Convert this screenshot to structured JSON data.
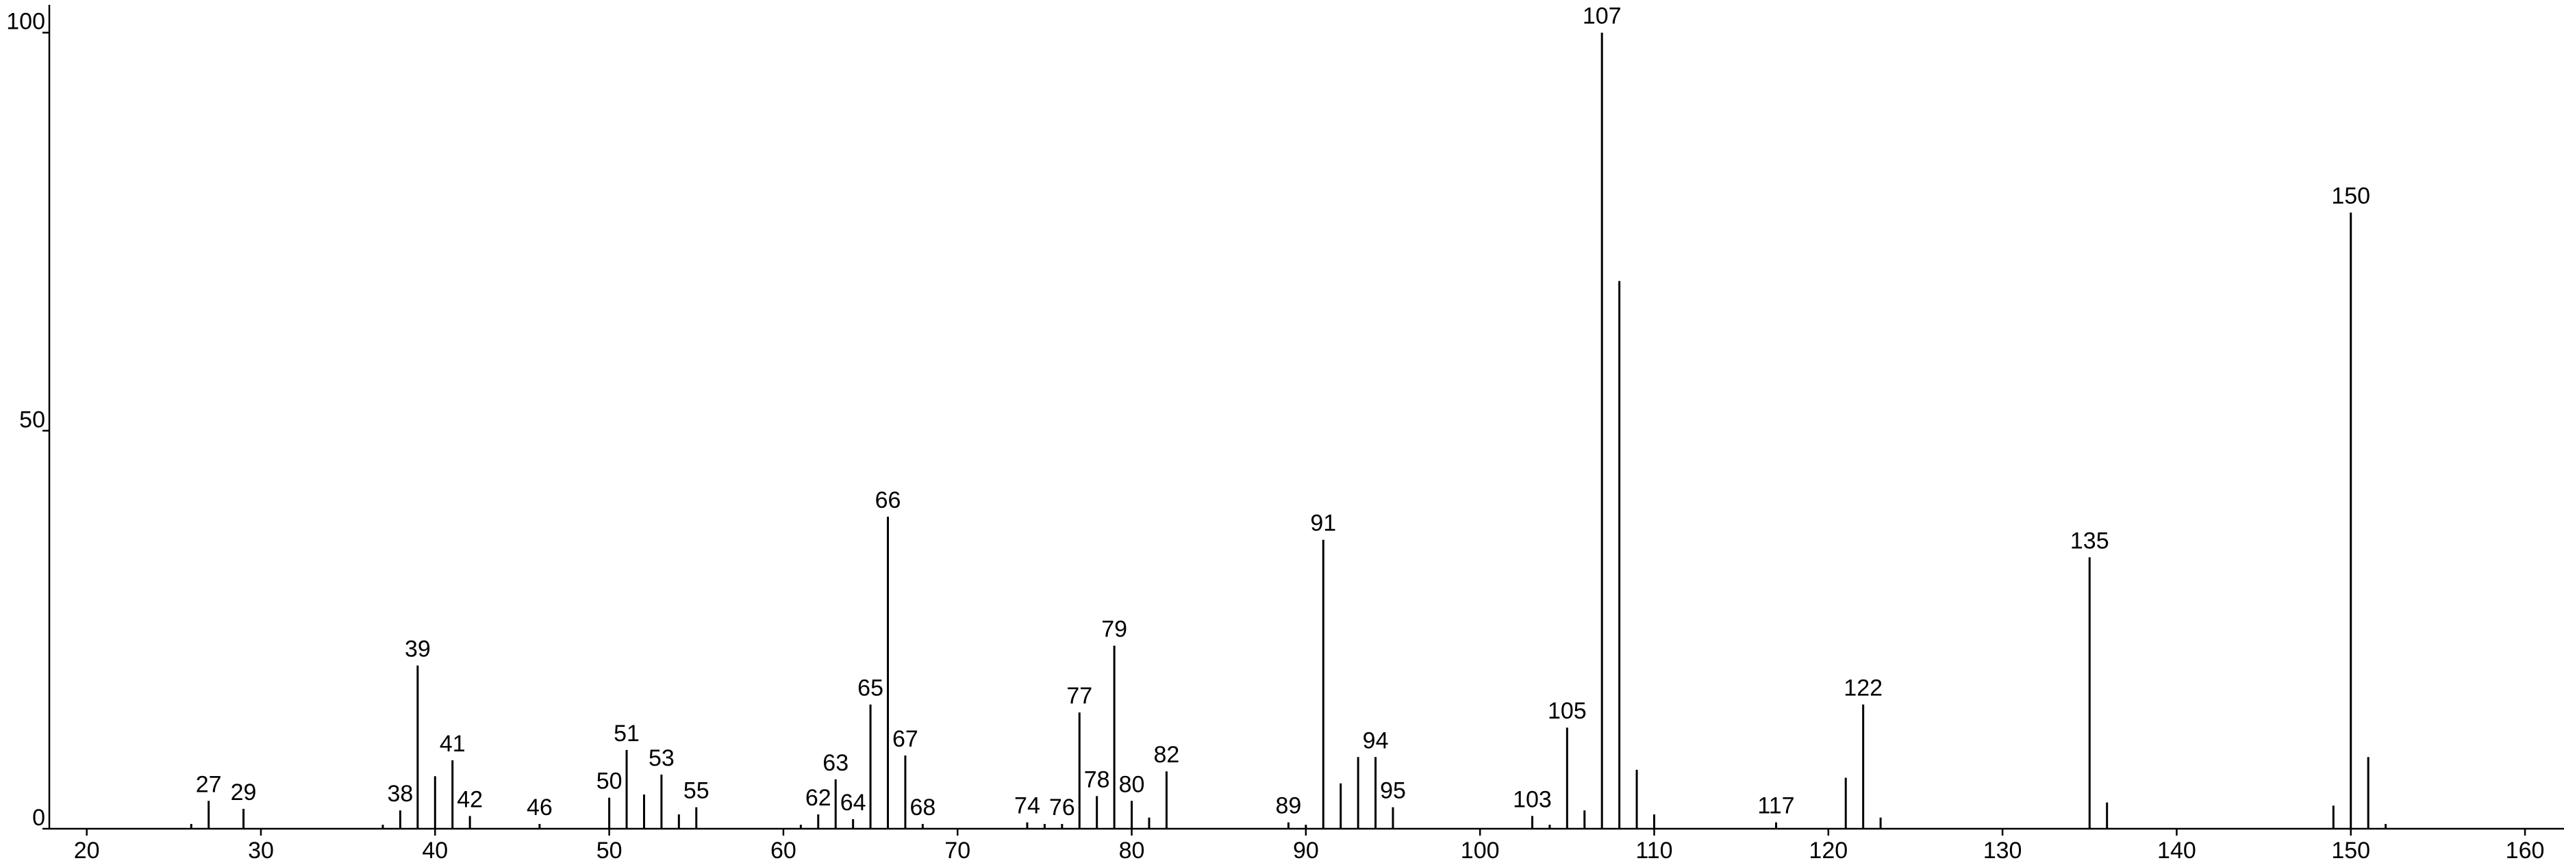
{
  "chart_data": {
    "type": "stem",
    "x": [
      26,
      27,
      29,
      37,
      38,
      39,
      40,
      41,
      42,
      46,
      50,
      51,
      52,
      53,
      54,
      55,
      61,
      62,
      63,
      64,
      65,
      66,
      67,
      68,
      74,
      75,
      76,
      77,
      78,
      79,
      80,
      81,
      82,
      89,
      90,
      91,
      92,
      93,
      94,
      95,
      103,
      104,
      105,
      106,
      107,
      108,
      109,
      110,
      117,
      121,
      122,
      123,
      135,
      136,
      149,
      150,
      151,
      152
    ],
    "values": [
      0.6,
      3.5,
      2.5,
      0.5,
      2.3,
      20.5,
      6.6,
      8.6,
      1.6,
      0.6,
      3.9,
      9.9,
      4.3,
      6.8,
      1.8,
      2.7,
      0.5,
      1.8,
      6.2,
      1.2,
      15.6,
      39.2,
      9.2,
      0.6,
      0.8,
      0.6,
      0.6,
      14.6,
      4.1,
      23,
      3.5,
      1.4,
      7.2,
      0.8,
      0.5,
      36.3,
      5.7,
      9,
      9,
      2.7,
      1.6,
      0.5,
      12.7,
      2.3,
      100,
      68.8,
      7.4,
      1.8,
      0.8,
      6.4,
      15.6,
      1.4,
      34.1,
      3.3,
      2.9,
      77.4,
      9,
      0.6
    ],
    "annotations": [
      null,
      "27",
      "29",
      null,
      "38",
      "39",
      null,
      "41",
      "42",
      "46",
      "50",
      "51",
      null,
      "53",
      null,
      "55",
      null,
      "62",
      "63",
      "64",
      "65",
      "66",
      "67",
      "68",
      "74",
      null,
      "76",
      "77",
      "78",
      "79",
      "80",
      null,
      "82",
      "89",
      null,
      "91",
      null,
      null,
      "94",
      "95",
      "103",
      null,
      "105",
      null,
      "107",
      null,
      null,
      null,
      "117",
      null,
      "122",
      null,
      "135",
      null,
      null,
      "150",
      null,
      null
    ],
    "color": "#000000",
    "xlim": [
      17.85,
      162.24
    ],
    "xticks": [
      20,
      30,
      40,
      50,
      60,
      70,
      80,
      90,
      100,
      110,
      120,
      130,
      140,
      150,
      160
    ],
    "ylim": [
      0,
      103.5
    ],
    "yticks": [
      0,
      50,
      100
    ],
    "grid": false
  }
}
